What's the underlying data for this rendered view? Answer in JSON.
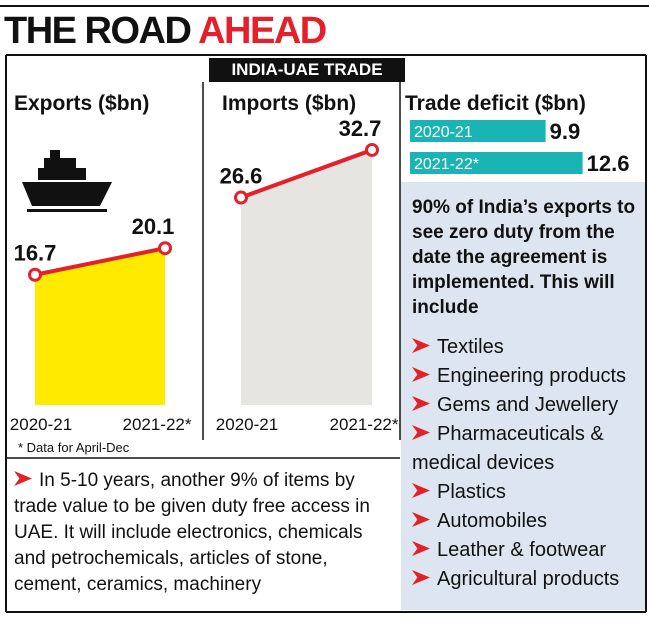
{
  "header": {
    "title": "THE ROAD",
    "highlight": "AHEAD",
    "badge": "INDIA-UAE TRADE"
  },
  "chart_data": [
    {
      "type": "area",
      "title": "Exports ($bn)",
      "categories": [
        "2020-21",
        "2021-22*"
      ],
      "values": [
        16.7,
        20.1
      ],
      "color": "#ffea00",
      "line_color": "#e4212a"
    },
    {
      "type": "area",
      "title": "Imports ($bn)",
      "categories": [
        "2020-21",
        "2021-22*"
      ],
      "values": [
        26.6,
        32.7
      ],
      "color": "#e6e5e2",
      "line_color": "#e4212a"
    },
    {
      "type": "bar",
      "orientation": "horizontal",
      "title": "Trade deficit ($bn)",
      "categories": [
        "2020-21",
        "2021-22*"
      ],
      "values": [
        9.9,
        12.6
      ],
      "color": "#1ab4b4"
    }
  ],
  "footnote": "* Data for April-Dec",
  "note": "In 5-10 years, another 9% of items by trade value to be given duty free access in UAE. It will include electronics, chemicals and petrochemicals, articles of stone, cement, ceramics, machinery",
  "panel": {
    "heading": "90% of India’s exports to see zero duty from the date the agreement is implemented. This will include",
    "items": [
      "Textiles",
      "Engineering products",
      "Gems and Jewellery",
      "Pharmaceuticals & medical devices",
      "Plastics",
      "Automobiles",
      "Leather & footwear",
      "Agricultural products"
    ]
  }
}
